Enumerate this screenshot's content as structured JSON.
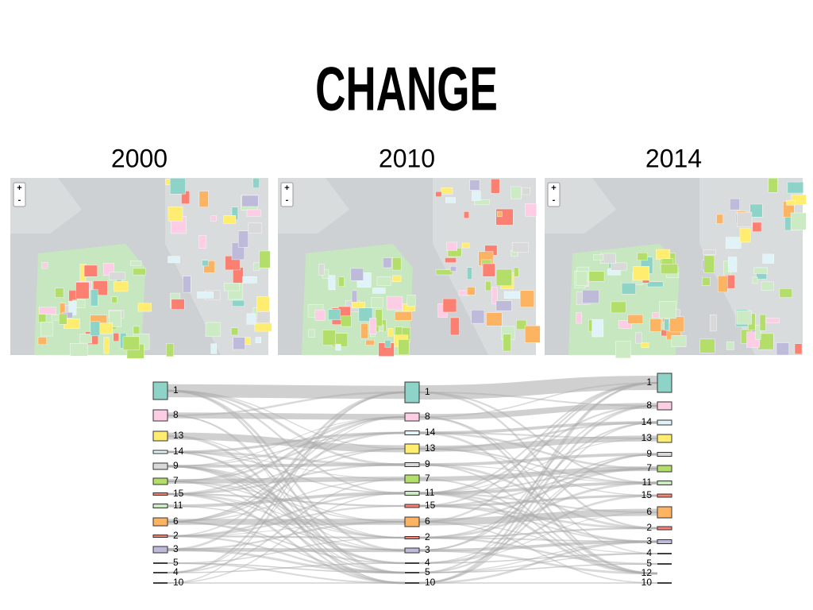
{
  "header": {
    "title": "CHANGE"
  },
  "maps": [
    {
      "year": "2000",
      "zoom_in": "+",
      "zoom_out": "-"
    },
    {
      "year": "2010",
      "zoom_in": "+",
      "zoom_out": "-"
    },
    {
      "year": "2014",
      "zoom_in": "+",
      "zoom_out": "-"
    }
  ],
  "diagram": {
    "columns": [
      {
        "nodes": [
          {
            "label": "1"
          },
          {
            "label": "8"
          },
          {
            "label": "13"
          },
          {
            "label": "14"
          },
          {
            "label": "9"
          },
          {
            "label": "7"
          },
          {
            "label": "15"
          },
          {
            "label": "11"
          },
          {
            "label": "6"
          },
          {
            "label": "2"
          },
          {
            "label": "3"
          },
          {
            "label": "5"
          },
          {
            "label": "4"
          },
          {
            "label": "10"
          }
        ]
      },
      {
        "nodes": [
          {
            "label": "1"
          },
          {
            "label": "8"
          },
          {
            "label": "14"
          },
          {
            "label": "13"
          },
          {
            "label": "9"
          },
          {
            "label": "7"
          },
          {
            "label": "11"
          },
          {
            "label": "15"
          },
          {
            "label": "6"
          },
          {
            "label": "2"
          },
          {
            "label": "3"
          },
          {
            "label": "4"
          },
          {
            "label": "5"
          },
          {
            "label": "10"
          }
        ]
      },
      {
        "nodes": [
          {
            "label": "1"
          },
          {
            "label": "8"
          },
          {
            "label": "14"
          },
          {
            "label": "13"
          },
          {
            "label": "9"
          },
          {
            "label": "7"
          },
          {
            "label": "11"
          },
          {
            "label": "15"
          },
          {
            "label": "6"
          },
          {
            "label": "2"
          },
          {
            "label": "3"
          },
          {
            "label": "4"
          },
          {
            "label": "5"
          },
          {
            "label": "12"
          },
          {
            "label": "10"
          }
        ]
      }
    ]
  }
}
